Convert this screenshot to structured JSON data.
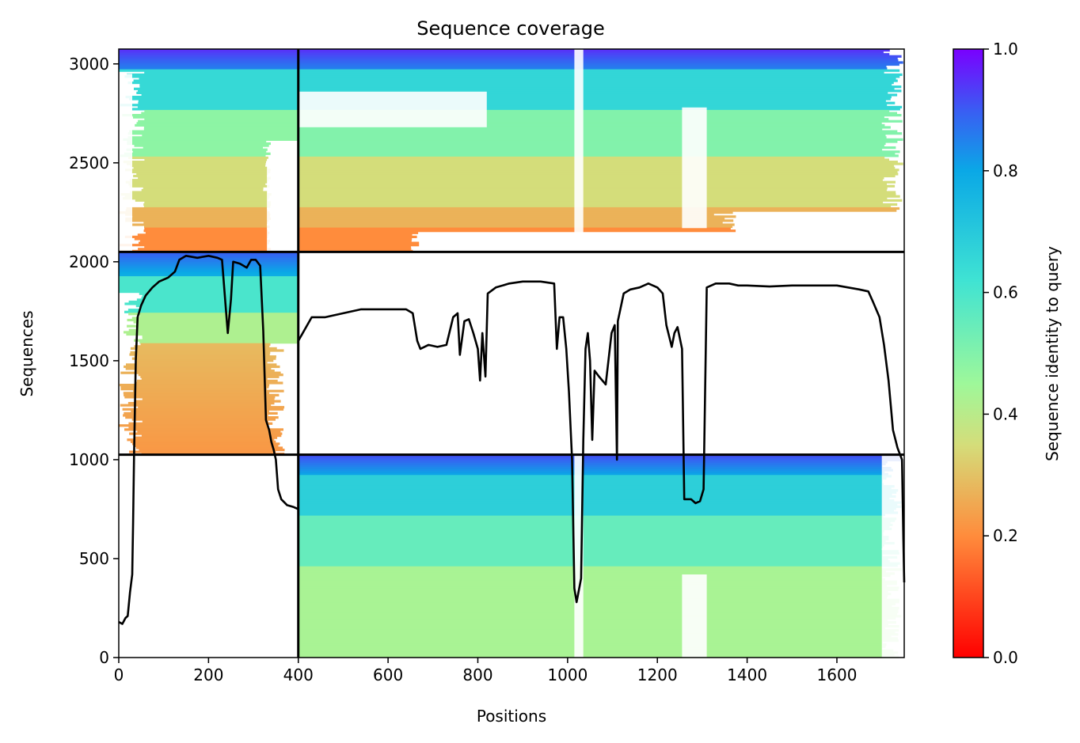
{
  "chart_data": {
    "type": "heatmap",
    "title": "Sequence coverage",
    "xlabel": "Positions",
    "ylabel": "Sequences",
    "xlim": [
      0,
      1750
    ],
    "ylim": [
      0,
      3075
    ],
    "xticks": [
      0,
      200,
      400,
      600,
      800,
      1000,
      1200,
      1400,
      1600
    ],
    "yticks": [
      0,
      500,
      1000,
      1500,
      2000,
      2500,
      3000
    ],
    "colormap": "rainbow_r",
    "colorbar": {
      "label": "Sequence identity to query",
      "range": [
        0,
        1
      ],
      "ticks": [
        "0.0",
        "0.2",
        "0.4",
        "0.6",
        "0.8",
        "1.0"
      ]
    },
    "separators": {
      "x": [
        400
      ],
      "y": [
        1025,
        2050
      ]
    },
    "blocks": [
      {
        "name": "upper-left",
        "x_range": [
          0,
          400
        ],
        "y_range": [
          2050,
          3075
        ]
      },
      {
        "name": "middle-left",
        "x_range": [
          0,
          400
        ],
        "y_range": [
          1025,
          2050
        ]
      },
      {
        "name": "upper-right",
        "x_range": [
          400,
          1750
        ],
        "y_range": [
          2050,
          3075
        ]
      },
      {
        "name": "lower-right",
        "x_range": [
          400,
          1750
        ],
        "y_range": [
          0,
          1025
        ]
      }
    ],
    "coverage_line": {
      "color": "#000000",
      "points": [
        [
          0,
          180
        ],
        [
          8,
          170
        ],
        [
          15,
          200
        ],
        [
          20,
          210
        ],
        [
          25,
          330
        ],
        [
          30,
          420
        ],
        [
          32,
          680
        ],
        [
          34,
          1020
        ],
        [
          38,
          1500
        ],
        [
          42,
          1720
        ],
        [
          50,
          1780
        ],
        [
          60,
          1830
        ],
        [
          75,
          1870
        ],
        [
          90,
          1900
        ],
        [
          110,
          1920
        ],
        [
          125,
          1950
        ],
        [
          135,
          2010
        ],
        [
          150,
          2030
        ],
        [
          175,
          2020
        ],
        [
          200,
          2030
        ],
        [
          220,
          2020
        ],
        [
          230,
          2010
        ],
        [
          238,
          1780
        ],
        [
          243,
          1640
        ],
        [
          250,
          1810
        ],
        [
          255,
          2000
        ],
        [
          270,
          1990
        ],
        [
          285,
          1970
        ],
        [
          295,
          2010
        ],
        [
          305,
          2010
        ],
        [
          315,
          1980
        ],
        [
          322,
          1650
        ],
        [
          328,
          1200
        ],
        [
          335,
          1150
        ],
        [
          340,
          1090
        ],
        [
          345,
          1050
        ],
        [
          350,
          1000
        ],
        [
          355,
          850
        ],
        [
          362,
          800
        ],
        [
          375,
          770
        ],
        [
          390,
          760
        ],
        [
          400,
          750
        ],
        [
          400,
          1600
        ],
        [
          415,
          1660
        ],
        [
          430,
          1720
        ],
        [
          460,
          1720
        ],
        [
          500,
          1740
        ],
        [
          540,
          1760
        ],
        [
          600,
          1760
        ],
        [
          640,
          1760
        ],
        [
          655,
          1740
        ],
        [
          665,
          1600
        ],
        [
          672,
          1560
        ],
        [
          690,
          1580
        ],
        [
          710,
          1570
        ],
        [
          730,
          1580
        ],
        [
          745,
          1720
        ],
        [
          755,
          1740
        ],
        [
          760,
          1530
        ],
        [
          770,
          1700
        ],
        [
          780,
          1710
        ],
        [
          790,
          1640
        ],
        [
          800,
          1560
        ],
        [
          805,
          1400
        ],
        [
          810,
          1640
        ],
        [
          817,
          1420
        ],
        [
          822,
          1840
        ],
        [
          840,
          1870
        ],
        [
          870,
          1890
        ],
        [
          900,
          1900
        ],
        [
          940,
          1900
        ],
        [
          970,
          1890
        ],
        [
          976,
          1560
        ],
        [
          982,
          1720
        ],
        [
          990,
          1720
        ],
        [
          997,
          1560
        ],
        [
          1003,
          1340
        ],
        [
          1010,
          1000
        ],
        [
          1015,
          350
        ],
        [
          1020,
          280
        ],
        [
          1030,
          400
        ],
        [
          1035,
          1100
        ],
        [
          1040,
          1560
        ],
        [
          1045,
          1640
        ],
        [
          1050,
          1500
        ],
        [
          1055,
          1100
        ],
        [
          1060,
          1450
        ],
        [
          1070,
          1420
        ],
        [
          1085,
          1380
        ],
        [
          1098,
          1640
        ],
        [
          1105,
          1680
        ],
        [
          1110,
          1000
        ],
        [
          1112,
          1700
        ],
        [
          1125,
          1840
        ],
        [
          1140,
          1860
        ],
        [
          1160,
          1870
        ],
        [
          1180,
          1890
        ],
        [
          1200,
          1870
        ],
        [
          1212,
          1840
        ],
        [
          1220,
          1680
        ],
        [
          1232,
          1570
        ],
        [
          1238,
          1640
        ],
        [
          1245,
          1670
        ],
        [
          1255,
          1560
        ],
        [
          1260,
          800
        ],
        [
          1275,
          800
        ],
        [
          1285,
          780
        ],
        [
          1295,
          790
        ],
        [
          1303,
          850
        ],
        [
          1310,
          1870
        ],
        [
          1330,
          1890
        ],
        [
          1360,
          1890
        ],
        [
          1380,
          1880
        ],
        [
          1400,
          1880
        ],
        [
          1450,
          1875
        ],
        [
          1500,
          1880
        ],
        [
          1550,
          1880
        ],
        [
          1600,
          1880
        ],
        [
          1650,
          1860
        ],
        [
          1670,
          1850
        ],
        [
          1680,
          1800
        ],
        [
          1695,
          1720
        ],
        [
          1705,
          1580
        ],
        [
          1715,
          1400
        ],
        [
          1725,
          1150
        ],
        [
          1735,
          1060
        ],
        [
          1745,
          1000
        ],
        [
          1748,
          600
        ],
        [
          1750,
          380
        ]
      ]
    }
  }
}
